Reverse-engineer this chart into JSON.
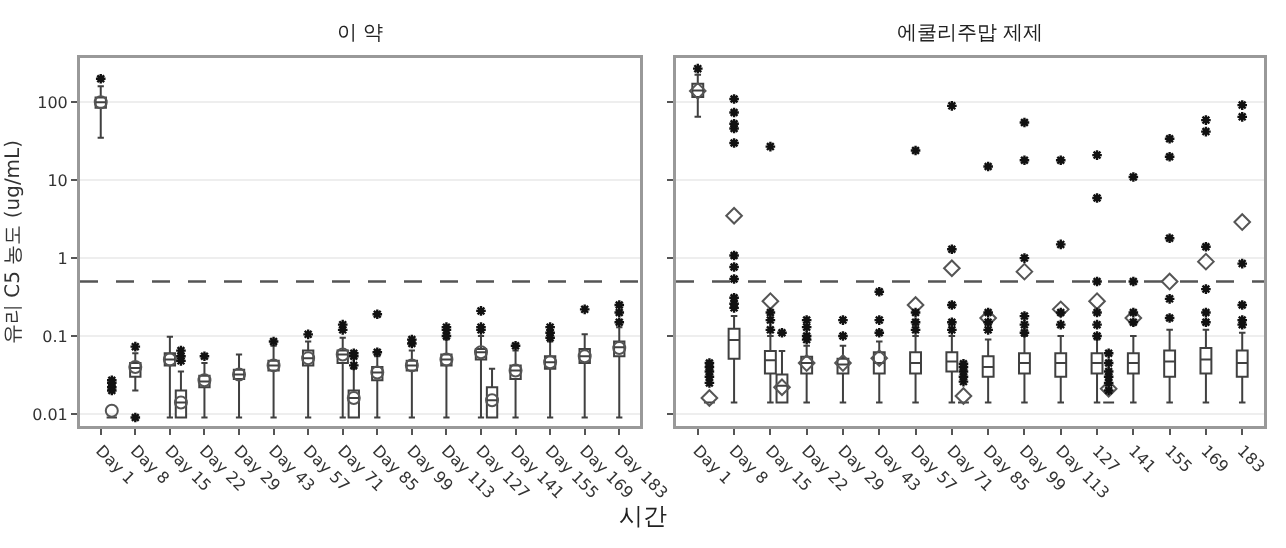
{
  "chart_data": [
    {
      "type": "box",
      "title": "이 약",
      "ylabel": "유리 C5 농도 (ug/mL)",
      "xlabel": "시간",
      "categories": [
        "Day 1",
        "Day 8",
        "Day 15",
        "Day 22",
        "Day 29",
        "Day 43",
        "Day 57",
        "Day 71",
        "Day 85",
        "Day 99",
        "Day 113",
        "Day 127",
        "Day 141",
        "Day 155",
        "Day 169",
        "Day 183"
      ],
      "log": true,
      "ylim": [
        0.007,
        370
      ],
      "yticks": [
        0.01,
        0.1,
        1,
        10,
        100
      ],
      "grid": "y",
      "marker": "circle",
      "ref_lines": [
        {
          "axis": "y",
          "value": 0.5,
          "line_style": "dashed",
          "color": "#555555"
        }
      ],
      "series": [
        {
          "color": "#404040",
          "boxes": [
            {
              "low": 35,
              "q1": 85,
              "median": 100,
              "q3": 115,
              "high": 160,
              "mean": 100,
              "outliers": [
                200
              ]
            },
            {
              "low": 0.02,
              "q1": 0.03,
              "median": 0.039,
              "q3": 0.045,
              "high": 0.06,
              "mean": 0.04,
              "outliers": [
                0.009,
                0.073
              ]
            },
            {
              "low": 0.009,
              "q1": 0.042,
              "median": 0.05,
              "q3": 0.06,
              "high": 0.098,
              "mean": 0.05
            },
            {
              "low": 0.009,
              "q1": 0.022,
              "median": 0.026,
              "q3": 0.031,
              "high": 0.045,
              "mean": 0.027,
              "outliers": [
                0.055
              ]
            },
            {
              "low": 0.009,
              "q1": 0.028,
              "median": 0.032,
              "q3": 0.037,
              "high": 0.058,
              "mean": 0.032
            },
            {
              "low": 0.009,
              "q1": 0.036,
              "median": 0.042,
              "q3": 0.048,
              "high": 0.075,
              "mean": 0.042,
              "outliers": [
                0.085
              ]
            },
            {
              "low": 0.009,
              "q1": 0.042,
              "median": 0.052,
              "q3": 0.065,
              "high": 0.085,
              "mean": 0.052,
              "outliers": [
                0.105
              ]
            },
            {
              "low": 0.009,
              "q1": 0.045,
              "median": 0.058,
              "q3": 0.065,
              "high": 0.095,
              "mean": 0.058,
              "outliers": [
                0.12,
                0.14
              ]
            },
            {
              "low": 0.009,
              "q1": 0.027,
              "median": 0.034,
              "q3": 0.04,
              "high": 0.055,
              "mean": 0.034,
              "outliers": [
                0.062,
                0.19
              ]
            },
            {
              "low": 0.009,
              "q1": 0.036,
              "median": 0.042,
              "q3": 0.048,
              "high": 0.065,
              "mean": 0.042,
              "outliers": [
                0.08,
                0.09
              ]
            },
            {
              "low": 0.009,
              "q1": 0.042,
              "median": 0.05,
              "q3": 0.058,
              "high": 0.09,
              "mean": 0.05,
              "outliers": [
                0.1,
                0.12,
                0.13
              ]
            },
            {
              "low": 0.009,
              "q1": 0.05,
              "median": 0.062,
              "q3": 0.068,
              "high": 0.1,
              "mean": 0.062,
              "outliers": [
                0.12,
                0.13,
                0.21
              ]
            },
            {
              "low": 0.009,
              "q1": 0.028,
              "median": 0.036,
              "q3": 0.042,
              "high": 0.065,
              "mean": 0.036,
              "outliers": [
                0.075
              ]
            },
            {
              "low": 0.009,
              "q1": 0.038,
              "median": 0.046,
              "q3": 0.055,
              "high": 0.085,
              "mean": 0.046,
              "outliers": [
                0.095,
                0.11,
                0.13
              ]
            },
            {
              "low": 0.009,
              "q1": 0.045,
              "median": 0.055,
              "q3": 0.068,
              "high": 0.105,
              "mean": 0.055,
              "outliers": [
                0.22
              ]
            },
            {
              "low": 0.009,
              "q1": 0.055,
              "median": 0.072,
              "q3": 0.085,
              "high": 0.13,
              "mean": 0.07,
              "outliers": [
                0.15,
                0.2,
                0.25
              ]
            }
          ]
        },
        {
          "color": "#404040",
          "boxes": [
            {
              "low": 0.009,
              "q1": 0.009,
              "median": 0.009,
              "q3": 0.009,
              "high": 0.009,
              "mean": 0.011,
              "outliers": [
                0.02,
                0.022,
                0.025,
                0.027
              ]
            },
            null,
            {
              "low": 0.009,
              "q1": 0.009,
              "median": 0.014,
              "q3": 0.02,
              "high": 0.035,
              "mean": 0.014,
              "outliers": [
                0.048,
                0.055,
                0.065
              ]
            },
            null,
            null,
            null,
            null,
            {
              "low": 0.009,
              "q1": 0.009,
              "median": 0.016,
              "q3": 0.02,
              "high": 0.038,
              "mean": 0.016,
              "outliers": [
                0.042,
                0.055,
                0.06
              ]
            },
            null,
            null,
            null,
            {
              "low": 0.009,
              "q1": 0.009,
              "median": 0.015,
              "q3": 0.022,
              "high": 0.038,
              "mean": 0.015
            },
            null,
            null,
            null,
            null
          ]
        }
      ]
    },
    {
      "type": "box",
      "title": "에쿨리주맙 제제",
      "categories": [
        "Day 1",
        "Day 8",
        "Day 15",
        "Day 22",
        "Day 29",
        "Day 43",
        "Day 57",
        "Day 71",
        "Day 85",
        "Day 99",
        "Day 113",
        "127",
        "141",
        "155",
        "169",
        "183"
      ],
      "log": true,
      "ylim": [
        0.007,
        370
      ],
      "yticks": [
        0.01,
        0.1,
        1,
        10,
        100
      ],
      "grid": "y",
      "marker": "diamond",
      "tick_labels": "x",
      "ref_lines": [
        {
          "axis": "y",
          "value": 0.5,
          "line_style": "dashed",
          "color": "#555555"
        }
      ],
      "series": [
        {
          "color": "#404040",
          "boxes": [
            {
              "low": 65,
              "q1": 117,
              "median": 142,
              "q3": 173,
              "high": 225,
              "mean": 140,
              "outliers": [
                270
              ]
            },
            {
              "low": 0.014,
              "q1": 0.051,
              "median": 0.089,
              "q3": 0.124,
              "high": 0.18,
              "mean": 3.5,
              "outliers": [
                0.23,
                0.26,
                0.31,
                0.54,
                0.77,
                1.08,
                30,
                46,
                53,
                74,
                110
              ]
            },
            {
              "low": 0.014,
              "q1": 0.033,
              "median": 0.049,
              "q3": 0.064,
              "high": 0.1,
              "mean": 0.28,
              "outliers": [
                0.12,
                0.16,
                0.2,
                27
              ]
            },
            {
              "low": 0.014,
              "q1": 0.033,
              "median": 0.045,
              "q3": 0.054,
              "high": 0.075,
              "mean": 0.045,
              "outliers": [
                0.09,
                0.1,
                0.13,
                0.16
              ]
            },
            {
              "low": 0.014,
              "q1": 0.033,
              "median": 0.043,
              "q3": 0.051,
              "high": 0.075,
              "mean": 0.045,
              "outliers": [
                0.1,
                0.16
              ]
            },
            {
              "low": 0.014,
              "q1": 0.033,
              "median": 0.045,
              "q3": 0.062,
              "high": 0.085,
              "mean": 0.052,
              "outliers": [
                0.11,
                0.16,
                0.37
              ]
            },
            {
              "low": 0.014,
              "q1": 0.033,
              "median": 0.045,
              "q3": 0.062,
              "high": 0.1,
              "mean": 0.25,
              "outliers": [
                0.12,
                0.15,
                0.2,
                24
              ]
            },
            {
              "low": 0.014,
              "q1": 0.035,
              "median": 0.047,
              "q3": 0.062,
              "high": 0.1,
              "mean": 0.74,
              "outliers": [
                0.12,
                0.15,
                0.25,
                1.3,
                90
              ]
            },
            {
              "low": 0.014,
              "q1": 0.03,
              "median": 0.04,
              "q3": 0.055,
              "high": 0.09,
              "mean": 0.17,
              "outliers": [
                0.12,
                0.15,
                0.2,
                15
              ]
            },
            {
              "low": 0.014,
              "q1": 0.033,
              "median": 0.045,
              "q3": 0.06,
              "high": 0.1,
              "mean": 0.67,
              "outliers": [
                0.11,
                0.14,
                0.18,
                1,
                18,
                55
              ]
            },
            {
              "low": 0.014,
              "q1": 0.03,
              "median": 0.045,
              "q3": 0.06,
              "high": 0.1,
              "mean": 0.22,
              "outliers": [
                0.14,
                0.2,
                1.5,
                18
              ]
            },
            {
              "low": 0.014,
              "q1": 0.033,
              "median": 0.045,
              "q3": 0.06,
              "high": 0.09,
              "mean": 0.28,
              "outliers": [
                0.1,
                0.14,
                0.2,
                0.5,
                5.9,
                21
              ]
            },
            {
              "low": 0.014,
              "q1": 0.033,
              "median": 0.045,
              "q3": 0.06,
              "high": 0.1,
              "mean": 0.17,
              "outliers": [
                0.15,
                0.2,
                0.5,
                11
              ]
            },
            {
              "low": 0.014,
              "q1": 0.03,
              "median": 0.047,
              "q3": 0.065,
              "high": 0.12,
              "mean": 0.5,
              "outliers": [
                0.17,
                0.3,
                1.8,
                20,
                34
              ]
            },
            {
              "low": 0.014,
              "q1": 0.033,
              "median": 0.05,
              "q3": 0.07,
              "high": 0.12,
              "mean": 0.9,
              "outliers": [
                0.15,
                0.2,
                0.4,
                1.4,
                42,
                59
              ]
            },
            {
              "low": 0.014,
              "q1": 0.03,
              "median": 0.045,
              "q3": 0.065,
              "high": 0.11,
              "mean": 2.9,
              "outliers": [
                0.14,
                0.16,
                0.25,
                0.85,
                65,
                92
              ]
            }
          ]
        },
        {
          "color": "#404040",
          "boxes": [
            {
              "low": 0.014,
              "q1": 0.014,
              "median": 0.014,
              "q3": 0.014,
              "high": 0.014,
              "mean": 0.016,
              "outliers": [
                0.025,
                0.03,
                0.035,
                0.04,
                0.045
              ]
            },
            null,
            {
              "low": 0.014,
              "q1": 0.014,
              "median": 0.023,
              "q3": 0.032,
              "high": 0.064,
              "mean": 0.022,
              "outliers": [
                0.11
              ]
            },
            null,
            null,
            null,
            null,
            {
              "low": 0.014,
              "q1": 0.014,
              "median": 0.014,
              "q3": 0.014,
              "high": 0.014,
              "mean": 0.017,
              "outliers": [
                0.026,
                0.03,
                0.035,
                0.04,
                0.044
              ]
            },
            null,
            null,
            null,
            {
              "low": 0.014,
              "q1": 0.014,
              "median": 0.014,
              "q3": 0.014,
              "high": 0.014,
              "mean": 0.021,
              "outliers": [
                0.02,
                0.025,
                0.03,
                0.035,
                0.045,
                0.06
              ]
            },
            null,
            null,
            null,
            null
          ]
        }
      ]
    }
  ]
}
